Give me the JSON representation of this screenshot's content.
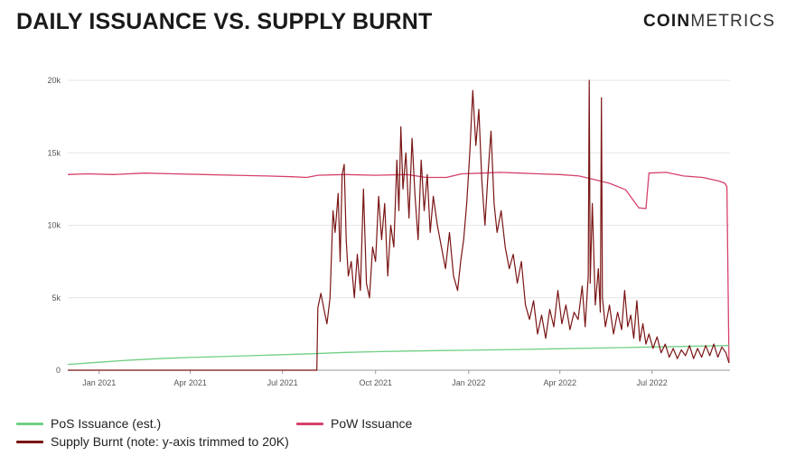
{
  "header": {
    "title": "DAILY ISSUANCE VS. SUPPLY BURNT",
    "logo_bold": "COIN",
    "logo_light": "METRICS"
  },
  "colors": {
    "pos": "#6fcf83",
    "pow": "#d6416b",
    "burn": "#7a1414",
    "grid": "#e6e6e6",
    "axis": "#555555"
  },
  "legend": {
    "pos": "PoS Issuance (est.)",
    "pow": "PoW Issuance",
    "burn": "Supply Burnt (note: y-axis trimmed to 20K)"
  },
  "chart_data": {
    "type": "line",
    "title": "DAILY ISSUANCE VS. SUPPLY BURNT",
    "xlabel": "",
    "ylabel": "",
    "xlim": [
      "2020-12-01",
      "2022-09-16"
    ],
    "ylim": [
      0,
      20000
    ],
    "yticks": [
      0,
      5000,
      10000,
      15000,
      20000
    ],
    "ytick_labels": [
      "0",
      "5k",
      "10k",
      "15k",
      "20k"
    ],
    "xticks": [
      "2021-01-01",
      "2021-04-01",
      "2021-07-01",
      "2021-10-01",
      "2022-01-01",
      "2022-04-01",
      "2022-07-01"
    ],
    "xtick_labels": [
      "Jan 2021",
      "Apr 2021",
      "Jul 2021",
      "Oct 2021",
      "Jan 2022",
      "Apr 2022",
      "Jul 2022"
    ],
    "grid": "horizontal",
    "legend_position": "bottom",
    "series": [
      {
        "name": "PoW Issuance",
        "color": "#d6416b",
        "points": [
          [
            "2020-12-01",
            13500
          ],
          [
            "2020-12-20",
            13550
          ],
          [
            "2021-01-15",
            13500
          ],
          [
            "2021-02-15",
            13600
          ],
          [
            "2021-03-15",
            13550
          ],
          [
            "2021-04-15",
            13500
          ],
          [
            "2021-05-15",
            13450
          ],
          [
            "2021-06-15",
            13400
          ],
          [
            "2021-07-10",
            13350
          ],
          [
            "2021-07-25",
            13300
          ],
          [
            "2021-08-05",
            13450
          ],
          [
            "2021-09-01",
            13500
          ],
          [
            "2021-10-01",
            13450
          ],
          [
            "2021-11-01",
            13500
          ],
          [
            "2021-11-20",
            13300
          ],
          [
            "2021-12-10",
            13300
          ],
          [
            "2021-12-25",
            13550
          ],
          [
            "2022-01-15",
            13600
          ],
          [
            "2022-02-01",
            13650
          ],
          [
            "2022-02-20",
            13600
          ],
          [
            "2022-03-10",
            13550
          ],
          [
            "2022-04-01",
            13500
          ],
          [
            "2022-04-20",
            13400
          ],
          [
            "2022-05-05",
            13150
          ],
          [
            "2022-05-20",
            12900
          ],
          [
            "2022-06-05",
            12450
          ],
          [
            "2022-06-18",
            11200
          ],
          [
            "2022-06-25",
            11150
          ],
          [
            "2022-06-28",
            13600
          ],
          [
            "2022-07-15",
            13650
          ],
          [
            "2022-08-01",
            13400
          ],
          [
            "2022-08-20",
            13300
          ],
          [
            "2022-09-05",
            13050
          ],
          [
            "2022-09-11",
            12900
          ],
          [
            "2022-09-13",
            12650
          ],
          [
            "2022-09-15",
            500
          ]
        ]
      },
      {
        "name": "PoS Issuance (est.)",
        "color": "#6fcf83",
        "points": [
          [
            "2020-12-01",
            400
          ],
          [
            "2021-01-01",
            550
          ],
          [
            "2021-02-01",
            700
          ],
          [
            "2021-03-01",
            800
          ],
          [
            "2021-04-01",
            880
          ],
          [
            "2021-05-01",
            940
          ],
          [
            "2021-06-01",
            1000
          ],
          [
            "2021-07-01",
            1070
          ],
          [
            "2021-08-01",
            1140
          ],
          [
            "2021-09-01",
            1230
          ],
          [
            "2021-10-01",
            1280
          ],
          [
            "2021-11-01",
            1320
          ],
          [
            "2021-12-01",
            1350
          ],
          [
            "2022-01-01",
            1380
          ],
          [
            "2022-02-01",
            1410
          ],
          [
            "2022-03-01",
            1440
          ],
          [
            "2022-04-01",
            1480
          ],
          [
            "2022-05-01",
            1520
          ],
          [
            "2022-06-01",
            1560
          ],
          [
            "2022-07-01",
            1600
          ],
          [
            "2022-08-01",
            1640
          ],
          [
            "2022-09-01",
            1680
          ],
          [
            "2022-09-15",
            1700
          ]
        ]
      },
      {
        "name": "Supply Burnt (note: y-axis trimmed to 20K)",
        "color": "#7a1414",
        "points": [
          [
            "2020-12-01",
            0
          ],
          [
            "2021-08-04",
            0
          ],
          [
            "2021-08-05",
            4300
          ],
          [
            "2021-08-08",
            5300
          ],
          [
            "2021-08-11",
            4200
          ],
          [
            "2021-08-14",
            3200
          ],
          [
            "2021-08-17",
            5000
          ],
          [
            "2021-08-20",
            11000
          ],
          [
            "2021-08-22",
            9500
          ],
          [
            "2021-08-25",
            12200
          ],
          [
            "2021-08-27",
            7500
          ],
          [
            "2021-08-29",
            13500
          ],
          [
            "2021-08-31",
            14200
          ],
          [
            "2021-09-02",
            9000
          ],
          [
            "2021-09-04",
            6500
          ],
          [
            "2021-09-07",
            7500
          ],
          [
            "2021-09-10",
            5000
          ],
          [
            "2021-09-13",
            8000
          ],
          [
            "2021-09-16",
            5500
          ],
          [
            "2021-09-19",
            12500
          ],
          [
            "2021-09-22",
            6000
          ],
          [
            "2021-09-25",
            5000
          ],
          [
            "2021-09-28",
            8500
          ],
          [
            "2021-10-01",
            7500
          ],
          [
            "2021-10-04",
            12000
          ],
          [
            "2021-10-07",
            9000
          ],
          [
            "2021-10-10",
            11500
          ],
          [
            "2021-10-13",
            6500
          ],
          [
            "2021-10-16",
            10000
          ],
          [
            "2021-10-19",
            8500
          ],
          [
            "2021-10-22",
            14500
          ],
          [
            "2021-10-24",
            11000
          ],
          [
            "2021-10-26",
            16800
          ],
          [
            "2021-10-28",
            12500
          ],
          [
            "2021-10-31",
            15000
          ],
          [
            "2021-11-03",
            10500
          ],
          [
            "2021-11-06",
            16000
          ],
          [
            "2021-11-09",
            12000
          ],
          [
            "2021-11-12",
            9000
          ],
          [
            "2021-11-15",
            14500
          ],
          [
            "2021-11-18",
            11000
          ],
          [
            "2021-11-21",
            13500
          ],
          [
            "2021-11-24",
            9500
          ],
          [
            "2021-11-27",
            12000
          ],
          [
            "2021-12-01",
            10000
          ],
          [
            "2021-12-05",
            8500
          ],
          [
            "2021-12-09",
            7000
          ],
          [
            "2021-12-13",
            9500
          ],
          [
            "2021-12-17",
            6500
          ],
          [
            "2021-12-21",
            5500
          ],
          [
            "2021-12-24",
            7500
          ],
          [
            "2021-12-27",
            9000
          ],
          [
            "2021-12-30",
            11500
          ],
          [
            "2022-01-02",
            15000
          ],
          [
            "2022-01-05",
            19300
          ],
          [
            "2022-01-08",
            15500
          ],
          [
            "2022-01-11",
            18000
          ],
          [
            "2022-01-14",
            13000
          ],
          [
            "2022-01-17",
            10000
          ],
          [
            "2022-01-20",
            13500
          ],
          [
            "2022-01-23",
            16500
          ],
          [
            "2022-01-26",
            11500
          ],
          [
            "2022-01-29",
            9500
          ],
          [
            "2022-02-02",
            11000
          ],
          [
            "2022-02-06",
            8500
          ],
          [
            "2022-02-10",
            7000
          ],
          [
            "2022-02-14",
            8000
          ],
          [
            "2022-02-18",
            6000
          ],
          [
            "2022-02-22",
            7500
          ],
          [
            "2022-02-26",
            4500
          ],
          [
            "2022-03-02",
            3500
          ],
          [
            "2022-03-06",
            4800
          ],
          [
            "2022-03-10",
            2500
          ],
          [
            "2022-03-14",
            3800
          ],
          [
            "2022-03-18",
            2200
          ],
          [
            "2022-03-22",
            4200
          ],
          [
            "2022-03-26",
            3000
          ],
          [
            "2022-03-30",
            5500
          ],
          [
            "2022-04-03",
            3200
          ],
          [
            "2022-04-07",
            4500
          ],
          [
            "2022-04-11",
            2800
          ],
          [
            "2022-04-15",
            4000
          ],
          [
            "2022-04-19",
            3500
          ],
          [
            "2022-04-23",
            5800
          ],
          [
            "2022-04-26",
            3000
          ],
          [
            "2022-04-29",
            6500
          ],
          [
            "2022-04-30",
            20000
          ],
          [
            "2022-05-01",
            6000
          ],
          [
            "2022-05-03",
            11500
          ],
          [
            "2022-05-06",
            4500
          ],
          [
            "2022-05-09",
            7000
          ],
          [
            "2022-05-11",
            4000
          ],
          [
            "2022-05-12",
            18800
          ],
          [
            "2022-05-13",
            5000
          ],
          [
            "2022-05-16",
            3000
          ],
          [
            "2022-05-20",
            4500
          ],
          [
            "2022-05-24",
            2500
          ],
          [
            "2022-05-28",
            4000
          ],
          [
            "2022-06-01",
            2800
          ],
          [
            "2022-06-04",
            5500
          ],
          [
            "2022-06-07",
            3000
          ],
          [
            "2022-06-10",
            3800
          ],
          [
            "2022-06-13",
            2200
          ],
          [
            "2022-06-16",
            4800
          ],
          [
            "2022-06-19",
            2000
          ],
          [
            "2022-06-22",
            3200
          ],
          [
            "2022-06-25",
            1800
          ],
          [
            "2022-06-28",
            2500
          ],
          [
            "2022-07-02",
            1500
          ],
          [
            "2022-07-06",
            2300
          ],
          [
            "2022-07-10",
            1200
          ],
          [
            "2022-07-14",
            1800
          ],
          [
            "2022-07-18",
            900
          ],
          [
            "2022-07-22",
            1500
          ],
          [
            "2022-07-26",
            800
          ],
          [
            "2022-07-30",
            1400
          ],
          [
            "2022-08-03",
            1000
          ],
          [
            "2022-08-07",
            1700
          ],
          [
            "2022-08-11",
            800
          ],
          [
            "2022-08-15",
            1500
          ],
          [
            "2022-08-19",
            900
          ],
          [
            "2022-08-23",
            1700
          ],
          [
            "2022-08-27",
            1000
          ],
          [
            "2022-08-31",
            1800
          ],
          [
            "2022-09-04",
            900
          ],
          [
            "2022-09-08",
            1600
          ],
          [
            "2022-09-12",
            1200
          ],
          [
            "2022-09-15",
            500
          ]
        ]
      }
    ]
  }
}
